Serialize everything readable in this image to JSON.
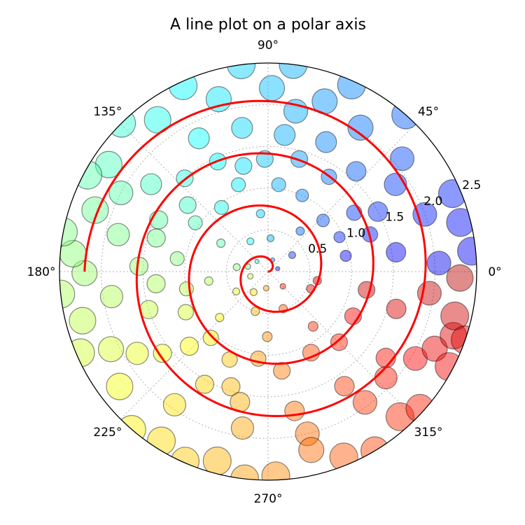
{
  "chart_data": {
    "type": "polar",
    "title": "A line plot on a polar axis",
    "r_max": 2.5,
    "radial_ticks": [
      0.5,
      1.0,
      1.5,
      2.0,
      2.5
    ],
    "radial_tick_labels": [
      "0.5",
      "1.0",
      "1.5",
      "2.0",
      "2.5"
    ],
    "radial_label_angle_deg": 22.5,
    "angle_ticks_deg": [
      0,
      45,
      90,
      135,
      180,
      225,
      270,
      315
    ],
    "angle_tick_labels": [
      "0°",
      "45°",
      "90°",
      "135°",
      "180°",
      "225°",
      "270°",
      "315°"
    ],
    "grid": true,
    "line_series": {
      "color": "#ff0000",
      "r_start": 0,
      "r_end": 2.2,
      "turns": 3.5,
      "description_formula": "r = 2.2*t, theta = 7*pi*t"
    },
    "scatter": {
      "alpha": 0.45,
      "colormap": "jet-like by angle",
      "points": [
        [
          0.12,
          0.3,
          3
        ],
        [
          0.15,
          1.2,
          3
        ],
        [
          0.18,
          2.4,
          3
        ],
        [
          0.22,
          3.4,
          4
        ],
        [
          0.2,
          4.6,
          4
        ],
        [
          0.25,
          5.5,
          4
        ],
        [
          0.35,
          0.6,
          5
        ],
        [
          0.4,
          1.5,
          5
        ],
        [
          0.42,
          2.1,
          5
        ],
        [
          0.38,
          3.0,
          5
        ],
        [
          0.45,
          3.7,
          5
        ],
        [
          0.5,
          4.4,
          6
        ],
        [
          0.48,
          5.1,
          6
        ],
        [
          0.55,
          5.9,
          6
        ],
        [
          0.62,
          0.9,
          6
        ],
        [
          0.7,
          1.7,
          6
        ],
        [
          0.66,
          2.6,
          6
        ],
        [
          0.72,
          3.3,
          6
        ],
        [
          0.8,
          3.9,
          6
        ],
        [
          0.78,
          4.7,
          7
        ],
        [
          0.85,
          5.4,
          7
        ],
        [
          0.6,
          6.1,
          6
        ],
        [
          0.25,
          2.9,
          4
        ],
        [
          0.3,
          4.1,
          5
        ],
        [
          0.95,
          0.2,
          8
        ],
        [
          0.95,
          0.45,
          8
        ],
        [
          0.9,
          0.75,
          9
        ],
        [
          1.0,
          1.15,
          9
        ],
        [
          1.05,
          1.45,
          10
        ],
        [
          1.1,
          1.9,
          10
        ],
        [
          0.95,
          2.2,
          10
        ],
        [
          1.05,
          2.55,
          10
        ],
        [
          1.1,
          3.0,
          10
        ],
        [
          1.0,
          3.35,
          10
        ],
        [
          1.1,
          3.6,
          11
        ],
        [
          1.05,
          4.0,
          11
        ],
        [
          1.15,
          4.3,
          11
        ],
        [
          1.05,
          4.6,
          11
        ],
        [
          1.2,
          4.85,
          12
        ],
        [
          1.1,
          5.2,
          12
        ],
        [
          1.2,
          5.5,
          12
        ],
        [
          1.15,
          5.8,
          12
        ],
        [
          1.2,
          6.1,
          12
        ],
        [
          1.3,
          0.35,
          11
        ],
        [
          1.25,
          0.6,
          11
        ],
        [
          1.35,
          1.0,
          11
        ],
        [
          1.4,
          1.3,
          12
        ],
        [
          1.35,
          1.6,
          12
        ],
        [
          1.45,
          2.0,
          12
        ],
        [
          1.5,
          2.3,
          12
        ],
        [
          1.45,
          2.7,
          13
        ],
        [
          1.55,
          3.1,
          13
        ],
        [
          1.5,
          3.45,
          13
        ],
        [
          1.6,
          3.8,
          13
        ],
        [
          1.55,
          4.2,
          13
        ],
        [
          1.6,
          4.5,
          14
        ],
        [
          1.7,
          4.9,
          14
        ],
        [
          1.65,
          5.3,
          14
        ],
        [
          1.75,
          5.65,
          14
        ],
        [
          1.6,
          6.0,
          14
        ],
        [
          1.3,
          1.8,
          12
        ],
        [
          1.25,
          2.45,
          12
        ],
        [
          1.4,
          2.85,
          13
        ],
        [
          1.35,
          3.25,
          13
        ],
        [
          1.3,
          3.9,
          13
        ],
        [
          1.45,
          4.4,
          13
        ],
        [
          1.55,
          0.15,
          14
        ],
        [
          1.5,
          0.5,
          14
        ],
        [
          1.6,
          0.85,
          14
        ],
        [
          1.7,
          1.15,
          15
        ],
        [
          1.65,
          1.45,
          15
        ],
        [
          1.75,
          1.75,
          15
        ],
        [
          1.8,
          2.05,
          15
        ],
        [
          1.75,
          2.5,
          15
        ],
        [
          1.85,
          2.9,
          16
        ],
        [
          1.9,
          3.3,
          16
        ],
        [
          1.85,
          3.7,
          16
        ],
        [
          1.95,
          4.1,
          16
        ],
        [
          1.9,
          4.55,
          16
        ],
        [
          2.0,
          4.95,
          17
        ],
        [
          1.95,
          5.35,
          17
        ],
        [
          2.05,
          5.75,
          17
        ],
        [
          1.95,
          6.15,
          17
        ],
        [
          1.85,
          0.6,
          16
        ],
        [
          2.0,
          0.35,
          17
        ],
        [
          2.1,
          0.7,
          17
        ],
        [
          2.05,
          1.0,
          18
        ],
        [
          2.15,
          1.25,
          18
        ],
        [
          2.2,
          1.55,
          18
        ],
        [
          2.15,
          1.85,
          18
        ],
        [
          2.25,
          2.2,
          19
        ],
        [
          2.3,
          2.55,
          19
        ],
        [
          2.2,
          2.8,
          19
        ],
        [
          2.35,
          3.05,
          19
        ],
        [
          2.3,
          3.4,
          19
        ],
        [
          2.25,
          3.8,
          19
        ],
        [
          2.4,
          4.15,
          20
        ],
        [
          2.35,
          4.45,
          20
        ],
        [
          2.45,
          4.75,
          20
        ],
        [
          2.4,
          5.1,
          20
        ],
        [
          2.35,
          5.45,
          20
        ],
        [
          2.45,
          5.8,
          20
        ],
        [
          2.3,
          6.05,
          20
        ],
        [
          2.45,
          0.1,
          20
        ],
        [
          2.4,
          0.4,
          20
        ],
        [
          2.5,
          0.85,
          20
        ],
        [
          2.45,
          1.15,
          20
        ],
        [
          2.5,
          1.45,
          20
        ],
        [
          2.5,
          1.7,
          20
        ],
        [
          2.45,
          2.0,
          20
        ],
        [
          2.5,
          2.35,
          20
        ],
        [
          2.45,
          2.65,
          20
        ],
        [
          2.5,
          2.95,
          20
        ],
        [
          2.5,
          3.25,
          20
        ],
        [
          2.45,
          3.55,
          20
        ],
        [
          2.5,
          4.0,
          20
        ],
        [
          2.48,
          4.3,
          20
        ],
        [
          2.5,
          4.6,
          20
        ],
        [
          2.5,
          5.25,
          20
        ],
        [
          2.45,
          5.55,
          20
        ],
        [
          2.5,
          5.95,
          20
        ],
        [
          2.35,
          5.95,
          19
        ],
        [
          2.2,
          5.85,
          18
        ],
        [
          2.2,
          4.95,
          18
        ],
        [
          1.9,
          5.55,
          16
        ],
        [
          2.1,
          3.6,
          18
        ],
        [
          2.2,
          3.15,
          18
        ],
        [
          2.0,
          2.65,
          17
        ],
        [
          1.95,
          1.4,
          17
        ],
        [
          2.05,
          0.05,
          17
        ],
        [
          2.3,
          6.25,
          19
        ],
        [
          2.38,
          0.25,
          20
        ]
      ]
    }
  }
}
